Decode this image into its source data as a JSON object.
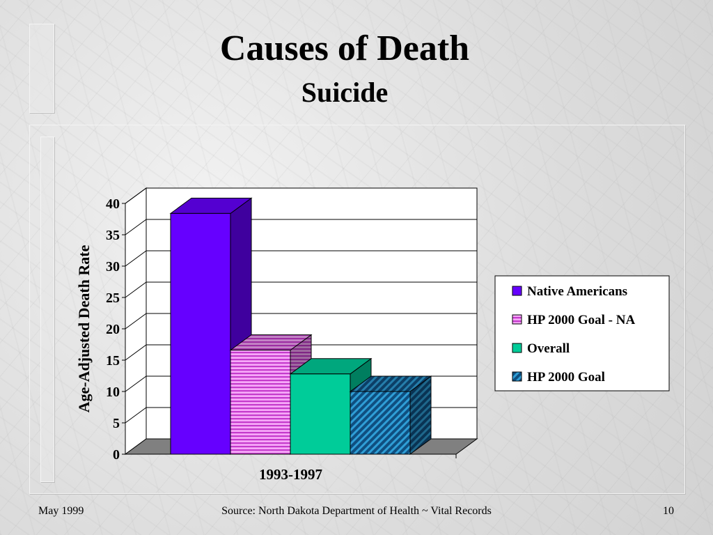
{
  "slide": {
    "title": "Causes of Death",
    "subtitle": "Suicide"
  },
  "footer": {
    "date": "May 1999",
    "source": "Source:  North Dakota Department of Health ~ Vital Records",
    "page_number": "10"
  },
  "chart_data": {
    "type": "bar",
    "view": "3d-clustered-column",
    "categories": [
      "1993-1997"
    ],
    "series": [
      {
        "name": "Native Americans",
        "values": [
          38.4
        ],
        "color": "#6600FF",
        "pattern": "solid"
      },
      {
        "name": "HP 2000 Goal - NA",
        "values": [
          16.6
        ],
        "color": "#E46DE9",
        "pattern": "horizontal-stripes"
      },
      {
        "name": "Overall",
        "values": [
          12.8
        ],
        "color": "#00CC99",
        "pattern": "solid"
      },
      {
        "name": "HP 2000 Goal",
        "values": [
          10.0
        ],
        "color": "#1A6FA8",
        "pattern": "diagonal-hatch"
      }
    ],
    "ylabel": "Age-Adjusted Death Rate",
    "ylim": [
      0,
      40
    ],
    "yticks": [
      "0",
      "5",
      "10",
      "15",
      "20",
      "25",
      "30",
      "35",
      "40"
    ],
    "grid": true,
    "legend": "right",
    "wall_color": "#FFFFFF",
    "floor_color": "#808080"
  }
}
